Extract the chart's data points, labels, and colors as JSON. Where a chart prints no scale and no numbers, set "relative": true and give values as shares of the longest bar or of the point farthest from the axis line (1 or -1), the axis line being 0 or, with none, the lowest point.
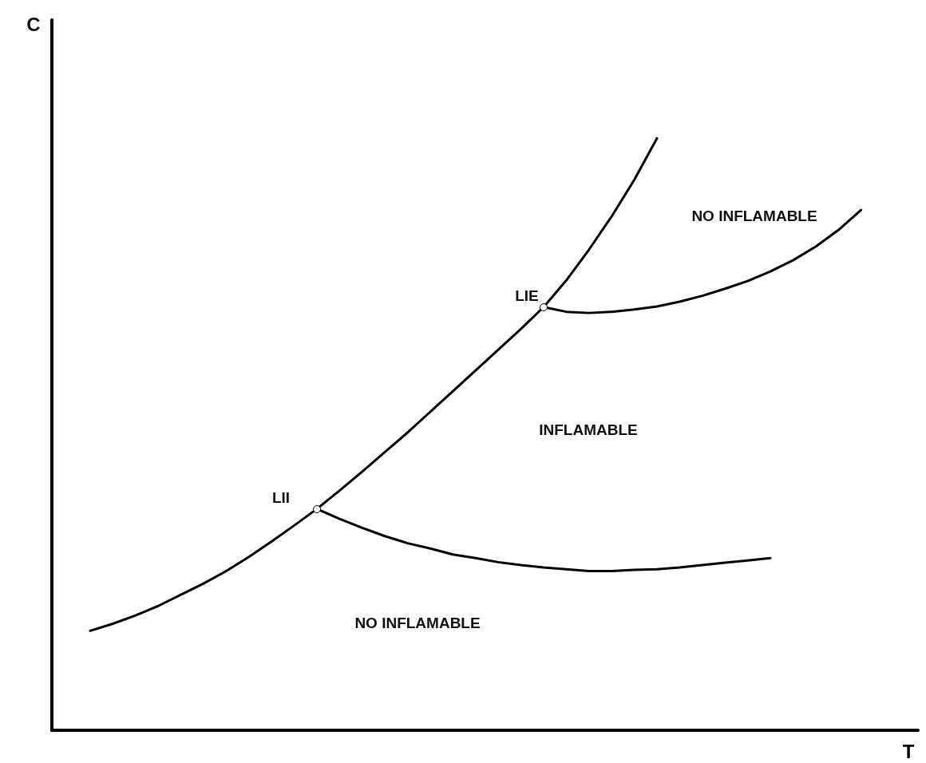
{
  "chart_data": {
    "type": "line",
    "relative": true,
    "xlabel": "T",
    "grid": false,
    "marker": "none",
    "line_style": "solid",
    "categories": [
      null,
      null,
      null,
      null,
      null,
      null,
      null,
      null,
      null,
      null,
      null,
      null,
      null,
      null,
      null,
      null,
      null,
      null,
      null,
      null,
      null,
      null,
      null,
      null,
      null,
      null,
      null,
      null,
      null,
      null,
      null,
      null,
      null,
      null,
      null
    ],
    "series": [
      {
        "color": "#000000",
        "values": [
          0.168,
          0.18,
          0.194,
          0.21,
          0.229,
          0.248,
          0.269,
          0.293,
          0.319,
          0.346,
          0.374,
          0.405,
          0.437,
          0.47,
          0.503,
          0.538,
          0.573,
          0.608,
          0.643,
          0.678,
          0.715,
          0.76,
          0.812,
          0.868,
          0.93,
          1,
          null,
          null,
          null,
          null,
          null,
          null,
          null,
          null,
          null
        ]
      },
      {
        "color": "#000000",
        "values": [
          null,
          null,
          null,
          null,
          null,
          null,
          null,
          null,
          null,
          null,
          0.374,
          0.357,
          0.342,
          0.328,
          0.316,
          0.307,
          0.297,
          0.291,
          0.284,
          0.279,
          0.275,
          0.272,
          0.269,
          0.269,
          0.271,
          0.272,
          0.275,
          0.279,
          0.283,
          0.287,
          0.291,
          null,
          null,
          null,
          null
        ]
      },
      {
        "color": "#000000",
        "values": [
          null,
          null,
          null,
          null,
          null,
          null,
          null,
          null,
          null,
          null,
          null,
          null,
          null,
          null,
          null,
          null,
          null,
          null,
          null,
          null,
          0.715,
          0.707,
          0.705,
          0.707,
          0.711,
          0.716,
          0.724,
          0.734,
          0.746,
          0.759,
          0.775,
          0.794,
          0.817,
          0.845,
          0.879
        ]
      }
    ],
    "annotations": [
      "NO INFLAMABLE",
      "INFLAMABLE",
      "NO INFLAMABLE",
      "LIE",
      "LII",
      "C"
    ]
  }
}
